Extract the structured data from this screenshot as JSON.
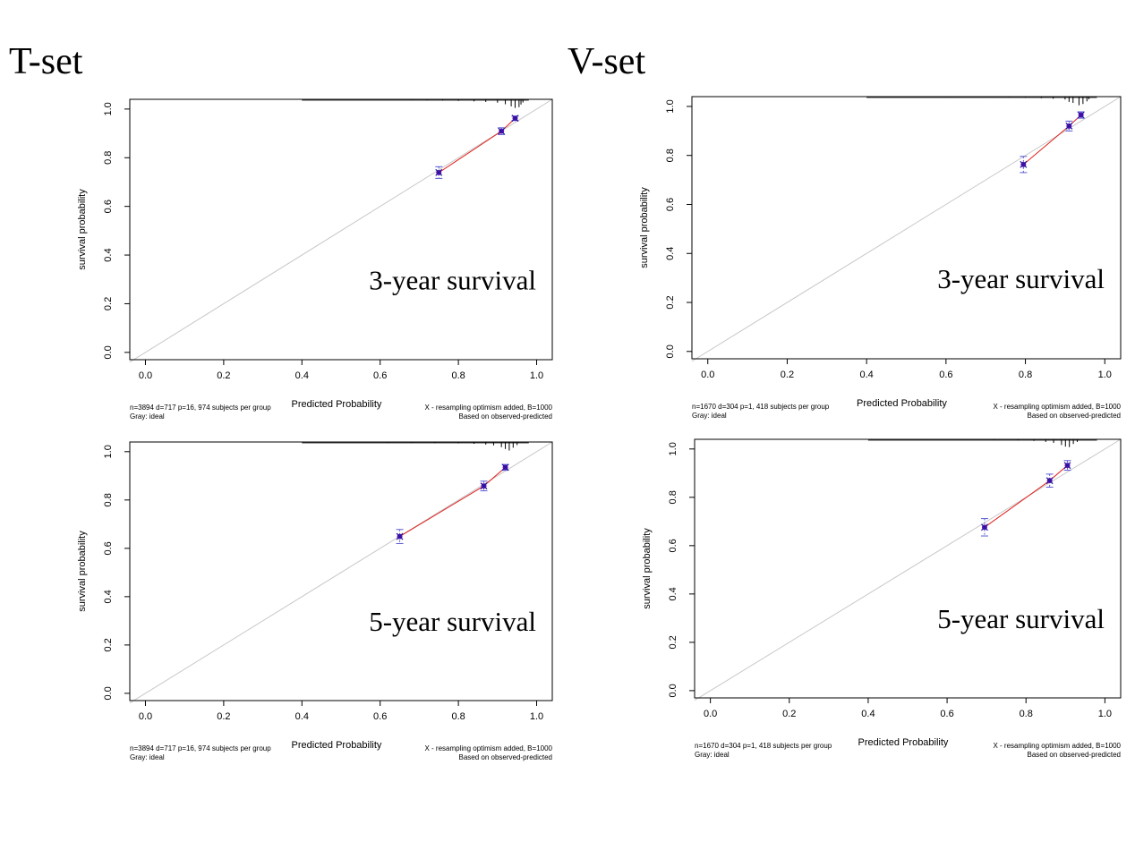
{
  "sets": [
    {
      "label": "T-set"
    },
    {
      "label": "V-set"
    }
  ],
  "chart_data": [
    {
      "type": "scatter",
      "set": "T-set",
      "annotation": "3-year survival",
      "xlabel": "Predicted Probability",
      "ylabel": "survival probability",
      "xlim": [
        -0.04,
        1.04
      ],
      "ylim": [
        -0.03,
        1.04
      ],
      "xticks": [
        "0.0",
        "0.2",
        "0.4",
        "0.6",
        "0.8",
        "1.0"
      ],
      "yticks": [
        "0.0",
        "0.2",
        "0.4",
        "0.6",
        "0.8",
        "1.0"
      ],
      "footnote_left": [
        "n=3894 d=717 p=16, 974 subjects per group",
        "Gray: ideal"
      ],
      "footnote_right": [
        "X - resampling optimism added, B=1000",
        "Based on observed-predicted"
      ],
      "points": [
        {
          "x": 0.75,
          "y": 0.739,
          "ylo": 0.715,
          "yhi": 0.763
        },
        {
          "x": 0.91,
          "y": 0.909,
          "ylo": 0.895,
          "yhi": 0.923
        },
        {
          "x": 0.945,
          "y": 0.962,
          "ylo": 0.953,
          "yhi": 0.971
        }
      ],
      "rug": [
        [
          0.55,
          0.02
        ],
        [
          0.62,
          0.02
        ],
        [
          0.68,
          0.03
        ],
        [
          0.72,
          0.04
        ],
        [
          0.76,
          0.05
        ],
        [
          0.8,
          0.06
        ],
        [
          0.84,
          0.08
        ],
        [
          0.87,
          0.1
        ],
        [
          0.9,
          0.13
        ],
        [
          0.92,
          0.19
        ],
        [
          0.935,
          0.27
        ],
        [
          0.945,
          0.33
        ],
        [
          0.955,
          0.3
        ],
        [
          0.96,
          0.2
        ],
        [
          0.965,
          0.12
        ]
      ],
      "grid": false,
      "reference_line": "ideal (gray diagonal)"
    },
    {
      "type": "scatter",
      "set": "V-set",
      "annotation": "3-year survival",
      "xlabel": "Predicted Probability",
      "ylabel": "survival probability",
      "xlim": [
        -0.04,
        1.04
      ],
      "ylim": [
        -0.03,
        1.04
      ],
      "xticks": [
        "0.0",
        "0.2",
        "0.4",
        "0.6",
        "0.8",
        "1.0"
      ],
      "yticks": [
        "0.0",
        "0.2",
        "0.4",
        "0.6",
        "0.8",
        "1.0"
      ],
      "footnote_left": [
        "n=1670 d=304 p=1, 418 subjects per group",
        "Gray: ideal"
      ],
      "footnote_right": [
        "X - resampling optimism added, B=1000",
        "Based on observed-predicted"
      ],
      "points": [
        {
          "x": 0.795,
          "y": 0.763,
          "ylo": 0.73,
          "yhi": 0.796
        },
        {
          "x": 0.91,
          "y": 0.92,
          "ylo": 0.9,
          "yhi": 0.94
        },
        {
          "x": 0.94,
          "y": 0.965,
          "ylo": 0.952,
          "yhi": 0.978
        }
      ],
      "rug": [
        [
          0.6,
          0.02
        ],
        [
          0.7,
          0.02
        ],
        [
          0.76,
          0.03
        ],
        [
          0.8,
          0.04
        ],
        [
          0.84,
          0.06
        ],
        [
          0.87,
          0.08
        ],
        [
          0.9,
          0.11
        ],
        [
          0.91,
          0.2
        ],
        [
          0.92,
          0.24
        ],
        [
          0.935,
          0.33
        ],
        [
          0.945,
          0.28
        ],
        [
          0.955,
          0.18
        ],
        [
          0.96,
          0.1
        ]
      ],
      "grid": false,
      "reference_line": "ideal (gray diagonal)"
    },
    {
      "type": "scatter",
      "set": "T-set",
      "annotation": "5-year survival",
      "xlabel": "Predicted Probability",
      "ylabel": "survival probability",
      "xlim": [
        -0.04,
        1.04
      ],
      "ylim": [
        -0.03,
        1.04
      ],
      "xticks": [
        "0.0",
        "0.2",
        "0.4",
        "0.6",
        "0.8",
        "1.0"
      ],
      "yticks": [
        "0.0",
        "0.2",
        "0.4",
        "0.6",
        "0.8",
        "1.0"
      ],
      "footnote_left": [
        "n=3894 d=717 p=16, 974 subjects per group",
        "Gray: ideal"
      ],
      "footnote_right": [
        "X - resampling optimism added, B=1000",
        "Based on observed-predicted"
      ],
      "points": [
        {
          "x": 0.65,
          "y": 0.649,
          "ylo": 0.62,
          "yhi": 0.678
        },
        {
          "x": 0.865,
          "y": 0.858,
          "ylo": 0.838,
          "yhi": 0.878
        },
        {
          "x": 0.92,
          "y": 0.935,
          "ylo": 0.923,
          "yhi": 0.947
        }
      ],
      "rug": [
        [
          0.45,
          0.02
        ],
        [
          0.55,
          0.02
        ],
        [
          0.62,
          0.03
        ],
        [
          0.68,
          0.03
        ],
        [
          0.74,
          0.04
        ],
        [
          0.8,
          0.05
        ],
        [
          0.84,
          0.07
        ],
        [
          0.87,
          0.1
        ],
        [
          0.89,
          0.13
        ],
        [
          0.91,
          0.2
        ],
        [
          0.92,
          0.27
        ],
        [
          0.93,
          0.33
        ],
        [
          0.94,
          0.22
        ],
        [
          0.95,
          0.12
        ]
      ],
      "grid": false,
      "reference_line": "ideal (gray diagonal)"
    },
    {
      "type": "scatter",
      "set": "V-set",
      "annotation": "5-year survival",
      "xlabel": "Predicted Probability",
      "ylabel": "survival probability",
      "xlim": [
        -0.04,
        1.04
      ],
      "ylim": [
        -0.03,
        1.04
      ],
      "xticks": [
        "0.0",
        "0.2",
        "0.4",
        "0.6",
        "0.8",
        "1.0"
      ],
      "yticks": [
        "0.0",
        "0.2",
        "0.4",
        "0.6",
        "0.8",
        "1.0"
      ],
      "footnote_left": [
        "n=1670 d=304 p=1, 418 subjects per group",
        "Gray: ideal"
      ],
      "footnote_right": [
        "X - resampling optimism added, B=1000",
        "Based on observed-predicted"
      ],
      "points": [
        {
          "x": 0.695,
          "y": 0.676,
          "ylo": 0.64,
          "yhi": 0.712
        },
        {
          "x": 0.86,
          "y": 0.869,
          "ylo": 0.842,
          "yhi": 0.896
        },
        {
          "x": 0.905,
          "y": 0.932,
          "ylo": 0.912,
          "yhi": 0.952
        }
      ],
      "rug": [
        [
          0.55,
          0.02
        ],
        [
          0.65,
          0.02
        ],
        [
          0.72,
          0.03
        ],
        [
          0.78,
          0.04
        ],
        [
          0.82,
          0.06
        ],
        [
          0.85,
          0.1
        ],
        [
          0.87,
          0.14
        ],
        [
          0.89,
          0.22
        ],
        [
          0.9,
          0.28
        ],
        [
          0.91,
          0.3
        ],
        [
          0.92,
          0.18
        ],
        [
          0.93,
          0.1
        ]
      ],
      "grid": false,
      "reference_line": "ideal (gray diagonal)"
    }
  ]
}
